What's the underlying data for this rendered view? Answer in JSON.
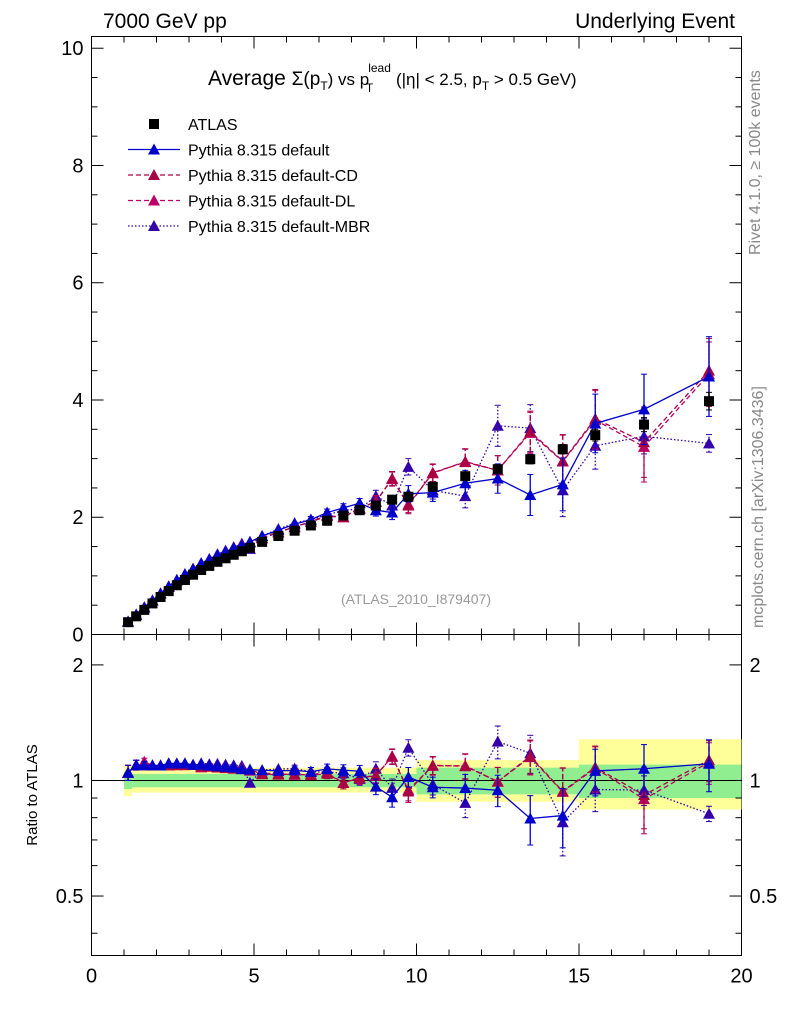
{
  "header": {
    "left": "7000 GeV pp",
    "right": "Underlying Event"
  },
  "side_labels": {
    "rivet": "Rivet 4.1.0, ≥ 100k events",
    "mcplots": "mcplots.cern.ch [arXiv:1306.3436]"
  },
  "title_parts": {
    "pre": "Average ",
    "sigma": "Σ(p",
    "t": "T",
    "close": ") vs p",
    "sup": "lead",
    "sub": "T",
    "rest": " (|η| < 2.5, p",
    "t2": "T",
    "end": " > 0.5 GeV)"
  },
  "watermark": "(ATLAS_2010_I879407)",
  "ratio_ylabel": "Ratio to ATLAS",
  "chart_data": {
    "type": "scatter",
    "x": [
      1.125,
      1.375,
      1.625,
      1.875,
      2.125,
      2.375,
      2.625,
      2.875,
      3.125,
      3.375,
      3.625,
      3.875,
      4.125,
      4.375,
      4.625,
      4.875,
      5.25,
      5.75,
      6.25,
      6.75,
      7.25,
      7.75,
      8.25,
      8.75,
      9.25,
      9.75,
      10.5,
      11.5,
      12.5,
      13.5,
      14.5,
      15.5,
      17.0,
      19.0
    ],
    "xlim": [
      0,
      20
    ],
    "main_ylim": [
      0,
      10.2
    ],
    "ratio_ylim": [
      0.35,
      2.4
    ],
    "main_ticks": [
      0,
      2,
      4,
      6,
      8,
      10
    ],
    "main_tick_labels": [
      "0",
      "2",
      "4",
      "6",
      "8",
      "10"
    ],
    "ratio_ticks": [
      0.5,
      1,
      2
    ],
    "ratio_tick_labels": [
      "0.5",
      "1",
      "2"
    ],
    "x_ticks": [
      0,
      5,
      10,
      15,
      20
    ],
    "x_tick_labels": [
      "0",
      "5",
      "10",
      "15",
      "20"
    ],
    "series": [
      {
        "name": "ATLAS",
        "color": "#000000",
        "marker": "square",
        "style": "none",
        "values": [
          0.21,
          0.31,
          0.42,
          0.53,
          0.64,
          0.74,
          0.84,
          0.93,
          1.02,
          1.1,
          1.17,
          1.24,
          1.3,
          1.36,
          1.42,
          1.48,
          1.58,
          1.68,
          1.77,
          1.86,
          1.94,
          2.03,
          2.12,
          2.2,
          2.3,
          2.35,
          2.52,
          2.7,
          2.82,
          2.99,
          3.16,
          3.4,
          3.58,
          3.98
        ],
        "errors": [
          0.02,
          0.02,
          0.02,
          0.02,
          0.02,
          0.02,
          0.02,
          0.02,
          0.02,
          0.02,
          0.02,
          0.02,
          0.02,
          0.02,
          0.02,
          0.02,
          0.03,
          0.03,
          0.03,
          0.04,
          0.04,
          0.04,
          0.05,
          0.05,
          0.05,
          0.06,
          0.06,
          0.07,
          0.07,
          0.08,
          0.08,
          0.1,
          0.12,
          0.15
        ]
      },
      {
        "name": "Pythia 8.315 default",
        "color": "#0000cc",
        "marker": "triangle",
        "style": "solid",
        "values": [
          0.22,
          0.34,
          0.46,
          0.58,
          0.7,
          0.82,
          0.93,
          1.03,
          1.12,
          1.21,
          1.28,
          1.35,
          1.41,
          1.47,
          1.52,
          1.58,
          1.68,
          1.78,
          1.88,
          1.96,
          2.08,
          2.16,
          2.24,
          2.12,
          2.08,
          2.4,
          2.42,
          2.58,
          2.66,
          2.38,
          2.56,
          3.6,
          3.84,
          4.4
        ],
        "errors": [
          0.01,
          0.01,
          0.01,
          0.01,
          0.01,
          0.01,
          0.01,
          0.01,
          0.01,
          0.01,
          0.01,
          0.01,
          0.01,
          0.01,
          0.01,
          0.01,
          0.03,
          0.03,
          0.04,
          0.05,
          0.06,
          0.07,
          0.08,
          0.1,
          0.12,
          0.14,
          0.15,
          0.22,
          0.25,
          0.35,
          0.45,
          0.5,
          0.6,
          0.68
        ]
      },
      {
        "name": "Pythia 8.315 default-CD",
        "color": "#aa0044",
        "marker": "triangle",
        "style": "dashed",
        "values": [
          0.22,
          0.34,
          0.46,
          0.58,
          0.7,
          0.81,
          0.92,
          1.02,
          1.12,
          1.2,
          1.27,
          1.34,
          1.4,
          1.46,
          1.52,
          1.58,
          1.64,
          1.74,
          1.84,
          1.92,
          2.02,
          2.0,
          2.16,
          2.26,
          2.66,
          2.2,
          2.76,
          2.94,
          2.8,
          3.46,
          2.96,
          3.68,
          3.28,
          4.5
        ],
        "errors": [
          0.01,
          0.01,
          0.01,
          0.01,
          0.01,
          0.01,
          0.01,
          0.01,
          0.01,
          0.01,
          0.01,
          0.01,
          0.01,
          0.01,
          0.01,
          0.01,
          0.03,
          0.03,
          0.04,
          0.05,
          0.06,
          0.07,
          0.08,
          0.1,
          0.12,
          0.14,
          0.15,
          0.22,
          0.25,
          0.35,
          0.45,
          0.5,
          0.6,
          0.55
        ]
      },
      {
        "name": "Pythia 8.315 default-DL",
        "color": "#bb0066",
        "marker": "triangle",
        "style": "dashed",
        "values": [
          0.22,
          0.34,
          0.47,
          0.58,
          0.7,
          0.81,
          0.93,
          1.02,
          1.12,
          1.19,
          1.28,
          1.34,
          1.41,
          1.46,
          1.53,
          1.57,
          1.65,
          1.75,
          1.83,
          1.93,
          2.03,
          2.0,
          2.15,
          2.27,
          2.65,
          2.22,
          2.75,
          2.95,
          2.8,
          3.44,
          2.95,
          3.66,
          3.2,
          4.44
        ],
        "errors": [
          0.01,
          0.01,
          0.01,
          0.01,
          0.01,
          0.01,
          0.01,
          0.01,
          0.01,
          0.01,
          0.01,
          0.01,
          0.01,
          0.01,
          0.01,
          0.01,
          0.03,
          0.03,
          0.04,
          0.05,
          0.06,
          0.07,
          0.08,
          0.1,
          0.12,
          0.14,
          0.15,
          0.22,
          0.25,
          0.35,
          0.45,
          0.5,
          0.6,
          0.55
        ]
      },
      {
        "name": "Pythia 8.315 default-MBR",
        "color": "#3300aa",
        "marker": "triangle",
        "style": "dotted",
        "values": [
          0.22,
          0.34,
          0.46,
          0.58,
          0.7,
          0.82,
          0.93,
          1.03,
          1.12,
          1.22,
          1.29,
          1.37,
          1.43,
          1.49,
          1.55,
          1.46,
          1.68,
          1.8,
          1.9,
          1.96,
          2.04,
          2.12,
          2.14,
          2.36,
          2.2,
          2.86,
          2.46,
          2.36,
          3.56,
          3.52,
          2.46,
          3.22,
          3.38,
          3.26
        ],
        "errors": [
          0.01,
          0.01,
          0.01,
          0.01,
          0.01,
          0.01,
          0.01,
          0.01,
          0.01,
          0.01,
          0.01,
          0.01,
          0.01,
          0.01,
          0.01,
          0.01,
          0.03,
          0.03,
          0.04,
          0.05,
          0.06,
          0.07,
          0.08,
          0.1,
          0.12,
          0.14,
          0.15,
          0.2,
          0.35,
          0.4,
          0.45,
          0.4,
          0.3,
          0.15
        ]
      }
    ],
    "ratio_band": {
      "x_low": [
        1.0,
        1.25,
        9.0,
        10.0,
        15.0
      ],
      "x_high": [
        1.25,
        9.0,
        10.0,
        15.0,
        20.0
      ],
      "inner_low": [
        0.95,
        0.96,
        0.96,
        0.92,
        0.9
      ],
      "inner_high": [
        1.05,
        1.04,
        1.04,
        1.08,
        1.1
      ],
      "outer_low": [
        0.91,
        0.93,
        0.93,
        0.88,
        0.84
      ],
      "outer_high": [
        1.09,
        1.08,
        1.08,
        1.13,
        1.28
      ]
    },
    "band_colors": {
      "inner": "#90ee90",
      "outer": "#ffff99"
    }
  }
}
